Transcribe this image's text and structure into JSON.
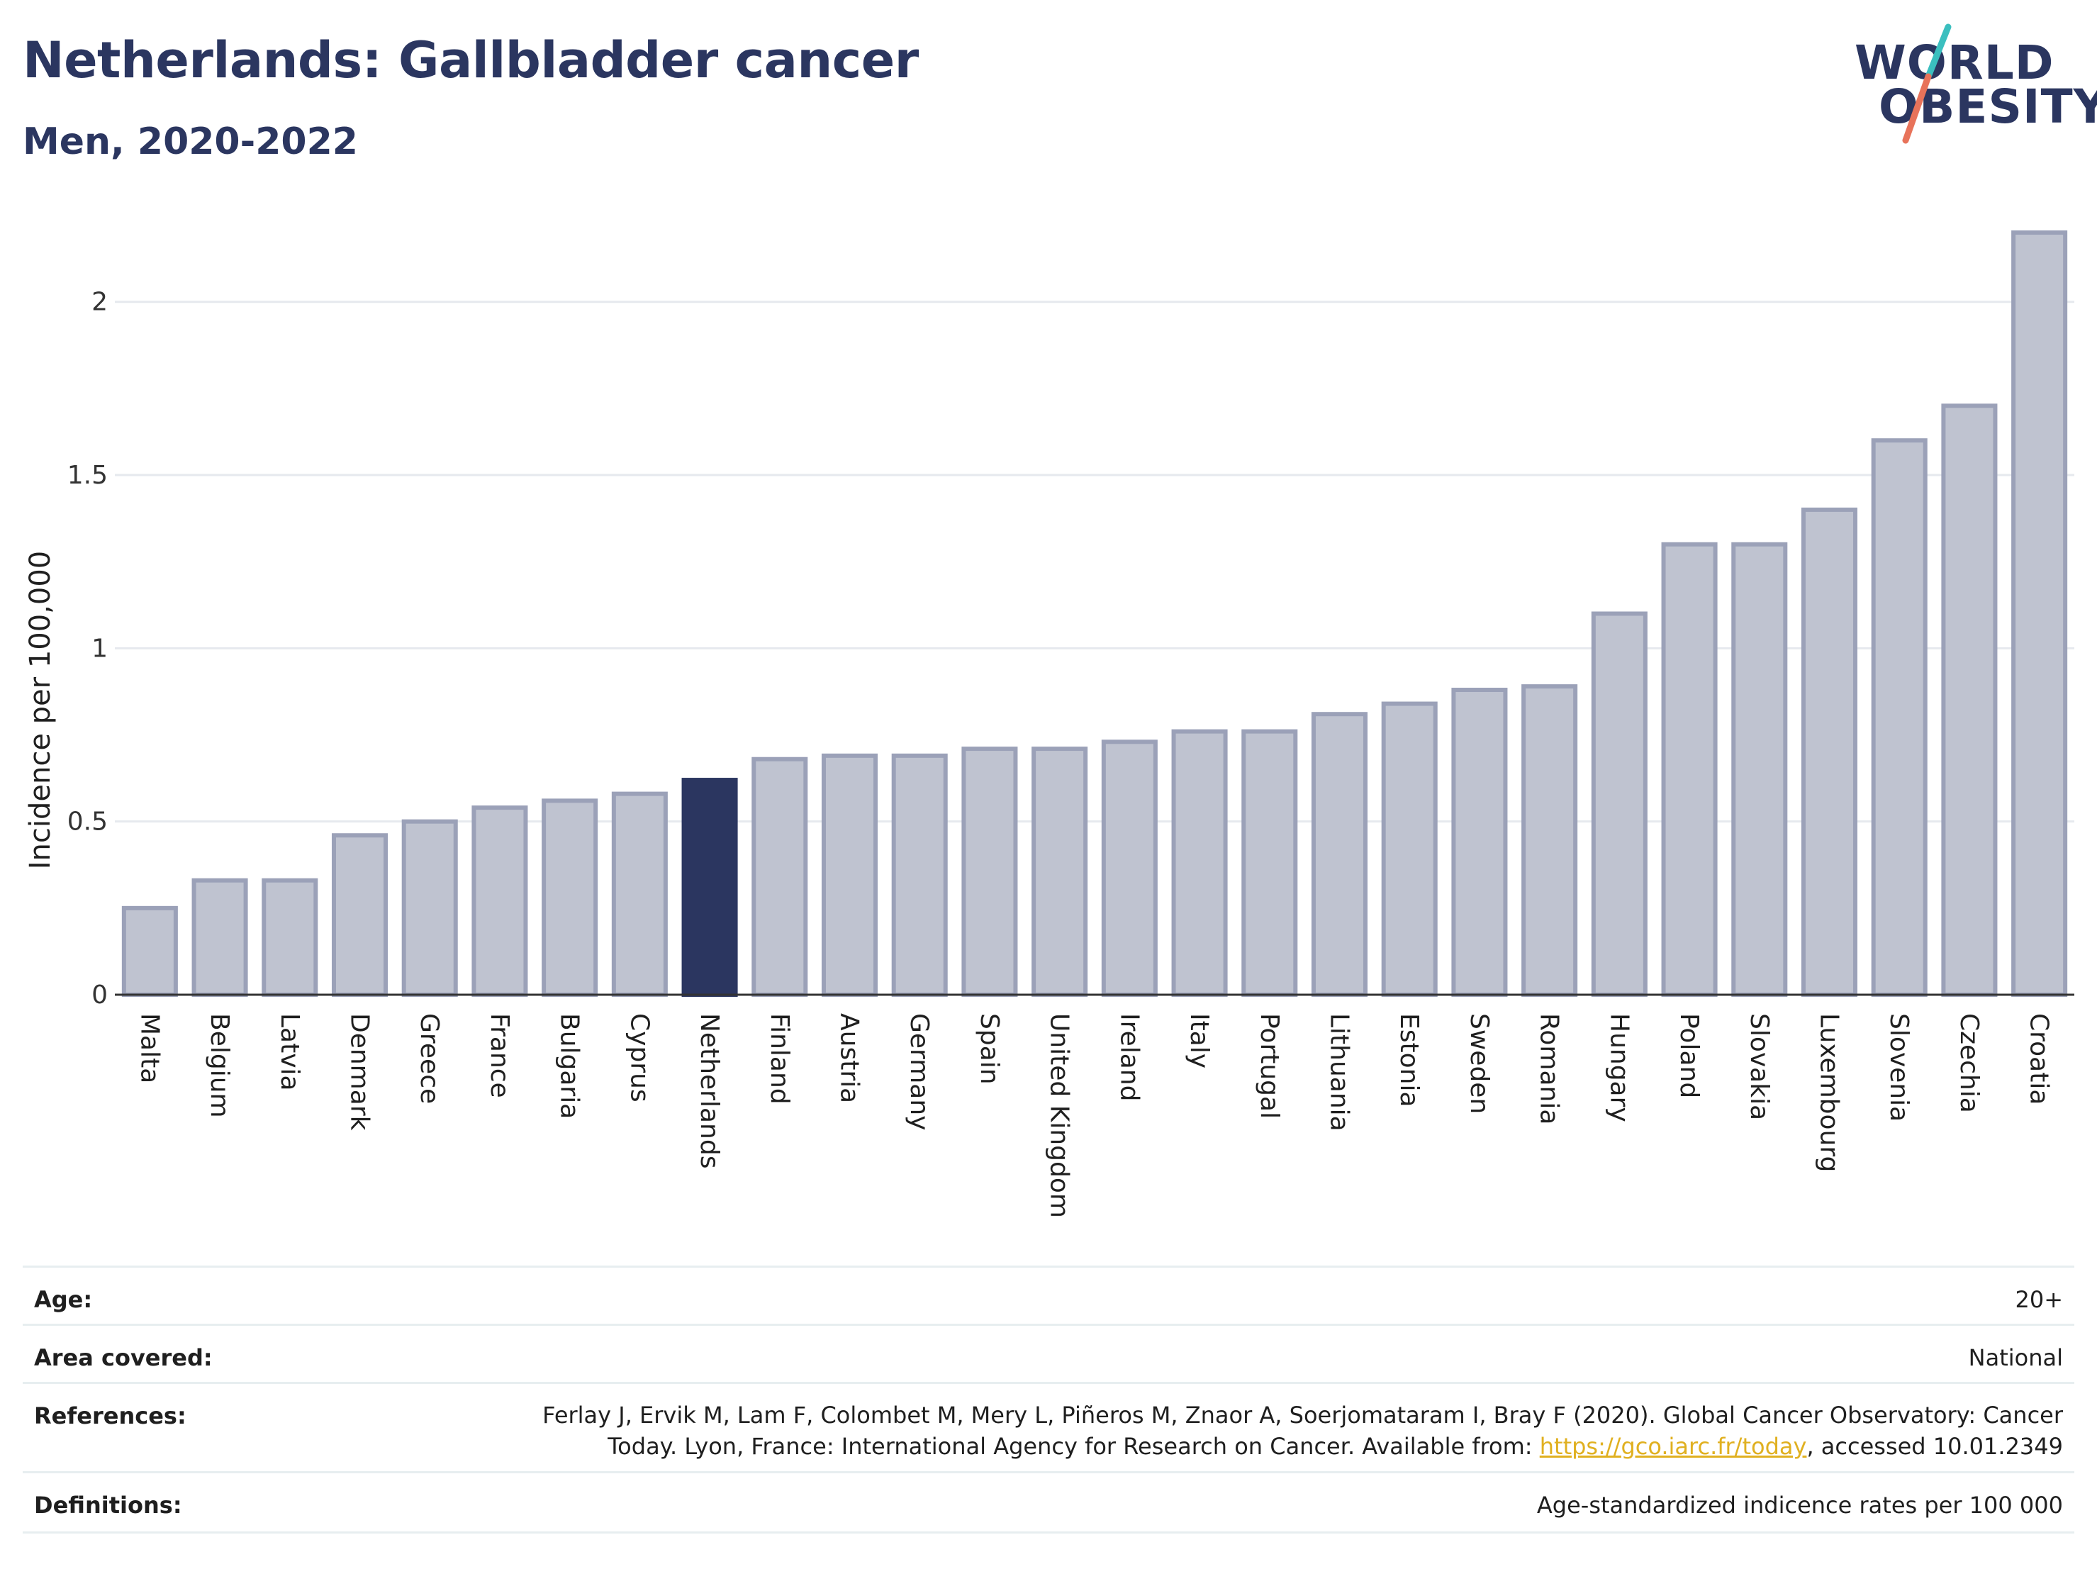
{
  "header": {
    "title": "Netherlands: Gallbladder cancer",
    "subtitle": "Men, 2020-2022"
  },
  "logo": {
    "line1": "WORLD",
    "line2": "OBESITY",
    "slash_top_color": "#3bbfbf",
    "slash_bottom_color": "#e8735a"
  },
  "colors": {
    "bar_default": "#bfc3d0",
    "bar_default_border": "#9ba1b8",
    "bar_highlight": "#2b3660",
    "text_dark": "#2b3660",
    "link": "#e0b020"
  },
  "chart_data": {
    "type": "bar",
    "ylabel": "Incidence per 100,000",
    "xlabel": "",
    "ylim": [
      0,
      2.2
    ],
    "yticks": [
      0,
      0.5,
      1,
      1.5,
      2
    ],
    "ytick_labels": [
      "0",
      "0.5",
      "1",
      "1.5",
      "2"
    ],
    "grid": true,
    "highlight": "Netherlands",
    "categories": [
      "Malta",
      "Belgium",
      "Latvia",
      "Denmark",
      "Greece",
      "France",
      "Bulgaria",
      "Cyprus",
      "Netherlands",
      "Finland",
      "Austria",
      "Germany",
      "Spain",
      "United Kingdom",
      "Ireland",
      "Italy",
      "Portugal",
      "Lithuania",
      "Estonia",
      "Sweden",
      "Romania",
      "Hungary",
      "Poland",
      "Slovakia",
      "Luxembourg",
      "Slovenia",
      "Czechia",
      "Croatia"
    ],
    "values": [
      0.25,
      0.33,
      0.33,
      0.46,
      0.5,
      0.54,
      0.56,
      0.58,
      0.62,
      0.68,
      0.69,
      0.69,
      0.71,
      0.71,
      0.73,
      0.76,
      0.76,
      0.81,
      0.84,
      0.88,
      0.89,
      1.1,
      1.3,
      1.3,
      1.4,
      1.6,
      1.7,
      2.2
    ]
  },
  "metadata": {
    "age_label": "Age:",
    "age_value": "20+",
    "area_label": "Area covered:",
    "area_value": "National",
    "references_label": "References:",
    "references_text_1": "Ferlay J, Ervik M, Lam F, Colombet M, Mery L, Piñeros M, Znaor A, Soerjomataram I, Bray F (2020). Global Cancer Observatory: Cancer",
    "references_text_2a": "Today. Lyon, France: International Agency for Research on Cancer. Available from: ",
    "references_link": "https://gco.iarc.fr/today",
    "references_text_2b": ", accessed 10.01.2349",
    "definitions_label": "Definitions:",
    "definitions_value": "Age-standardized indicence rates per 100 000"
  }
}
